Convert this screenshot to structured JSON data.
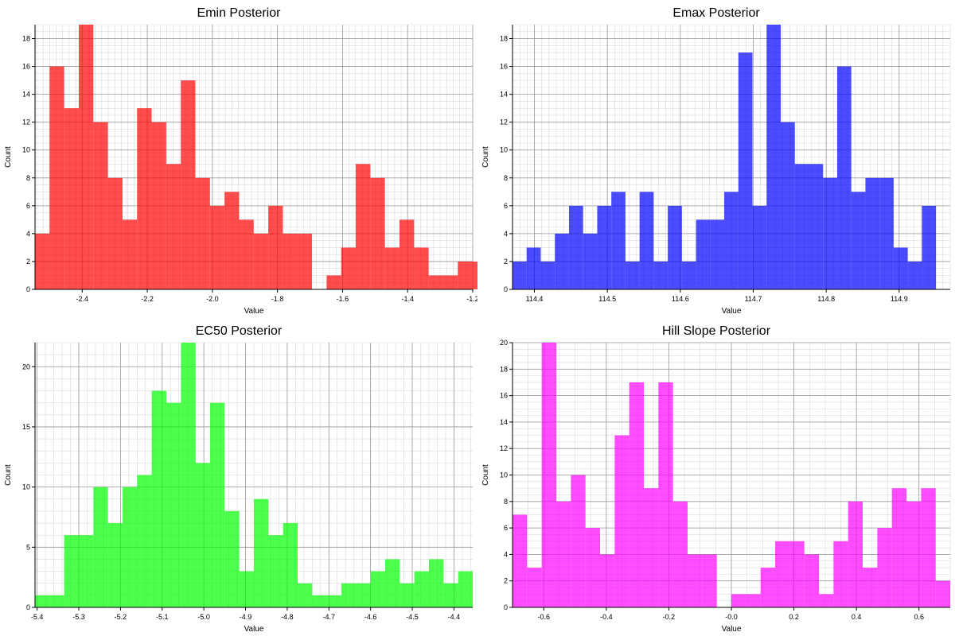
{
  "chart_data": [
    {
      "type": "bar",
      "title": "Emin Posterior",
      "xlabel": "Value",
      "ylabel": "Count",
      "color": "#ff0000",
      "xlim": [
        -2.545,
        -1.2
      ],
      "ylim": [
        0,
        19
      ],
      "bin_start": -2.545,
      "bin_width": 0.0448,
      "values": [
        4,
        16,
        13,
        19,
        12,
        8,
        5,
        13,
        12,
        9,
        15,
        8,
        6,
        7,
        5,
        4,
        6,
        4,
        4,
        0,
        1,
        3,
        9,
        8,
        3,
        5,
        3,
        1,
        1,
        2,
        2
      ],
      "x_ticks": [
        -2.4,
        -2.2,
        -2.0,
        -1.8,
        -1.6,
        -1.4,
        -1.2
      ],
      "x_tick_labels": [
        "-2.4",
        "-2.2",
        "-2.0",
        "-1.8",
        "-1.6",
        "-1.4",
        "-1.2"
      ],
      "y_ticks": [
        0,
        2,
        4,
        6,
        8,
        10,
        12,
        14,
        16,
        18
      ],
      "y_tick_labels": [
        "0",
        "2",
        "4",
        "6",
        "8",
        "10",
        "12",
        "14",
        "16",
        "18"
      ],
      "x_minor_step": 0.02,
      "y_minor_step": 0.5,
      "grid": true
    },
    {
      "type": "bar",
      "title": "Emax Posterior",
      "xlabel": "Value",
      "ylabel": "Count",
      "color": "#0000ff",
      "xlim": [
        114.37,
        114.97
      ],
      "ylim": [
        0,
        19
      ],
      "bin_start": 114.37,
      "bin_width": 0.01935,
      "values": [
        2,
        3,
        2,
        4,
        6,
        4,
        6,
        7,
        2,
        7,
        2,
        6,
        2,
        5,
        5,
        7,
        17,
        6,
        19,
        12,
        9,
        9,
        8,
        16,
        7,
        8,
        8,
        3,
        2,
        6
      ],
      "x_ticks": [
        114.4,
        114.5,
        114.6,
        114.7,
        114.8,
        114.9
      ],
      "x_tick_labels": [
        "114.4",
        "114.5",
        "114.6",
        "114.7",
        "114.8",
        "114.9"
      ],
      "y_ticks": [
        0,
        2,
        4,
        6,
        8,
        10,
        12,
        14,
        16,
        18
      ],
      "y_tick_labels": [
        "0",
        "2",
        "4",
        "6",
        "8",
        "10",
        "12",
        "14",
        "16",
        "18"
      ],
      "x_minor_step": 0.01,
      "y_minor_step": 0.5,
      "grid": true
    },
    {
      "type": "bar",
      "title": "EC50 Posterior",
      "xlabel": "Value",
      "ylabel": "Count",
      "color": "#00ff00",
      "xlim": [
        -5.405,
        -4.355
      ],
      "ylim": [
        0,
        22
      ],
      "bin_start": -5.405,
      "bin_width": 0.035,
      "values": [
        1,
        1,
        6,
        6,
        10,
        7,
        10,
        11,
        18,
        17,
        22,
        12,
        17,
        8,
        3,
        9,
        6,
        7,
        2,
        1,
        1,
        2,
        2,
        3,
        4,
        2,
        3,
        4,
        2,
        3
      ],
      "x_ticks": [
        -5.4,
        -5.3,
        -5.2,
        -5.1,
        -5.0,
        -4.9,
        -4.8,
        -4.7,
        -4.6,
        -4.5,
        -4.4
      ],
      "x_tick_labels": [
        "-5.4",
        "-5.3",
        "-5.2",
        "-5.1",
        "-5.0",
        "-4.9",
        "-4.8",
        "-4.7",
        "-4.6",
        "-4.5",
        "-4.4"
      ],
      "y_ticks": [
        0,
        5,
        10,
        15,
        20
      ],
      "y_tick_labels": [
        "0",
        "5",
        "10",
        "15",
        "20"
      ],
      "x_minor_step": 0.02,
      "y_minor_step": 1,
      "grid": true
    },
    {
      "type": "bar",
      "title": "Hill Slope Posterior",
      "xlabel": "Value",
      "ylabel": "Count",
      "color": "#ff00ff",
      "xlim": [
        -0.7,
        0.7
      ],
      "ylim": [
        0,
        20
      ],
      "bin_start": -0.7,
      "bin_width": 0.04667,
      "values": [
        7,
        3,
        20,
        8,
        10,
        6,
        4,
        13,
        17,
        9,
        17,
        8,
        4,
        4,
        0,
        1,
        1,
        3,
        5,
        5,
        4,
        1,
        5,
        8,
        3,
        6,
        9,
        8,
        9,
        2
      ],
      "x_ticks": [
        -0.6,
        -0.4,
        -0.2,
        0.0,
        0.2,
        0.4,
        0.6
      ],
      "x_tick_labels": [
        "-0.6",
        "-0.4",
        "-0.2",
        "-0.0",
        "0.2",
        "0.4",
        "0.6"
      ],
      "y_ticks": [
        0,
        2,
        4,
        6,
        8,
        10,
        12,
        14,
        16,
        18,
        20
      ],
      "y_tick_labels": [
        "0",
        "2",
        "4",
        "6",
        "8",
        "10",
        "12",
        "14",
        "16",
        "18",
        "20"
      ],
      "x_minor_step": 0.05,
      "y_minor_step": 0.5,
      "grid": true
    }
  ]
}
